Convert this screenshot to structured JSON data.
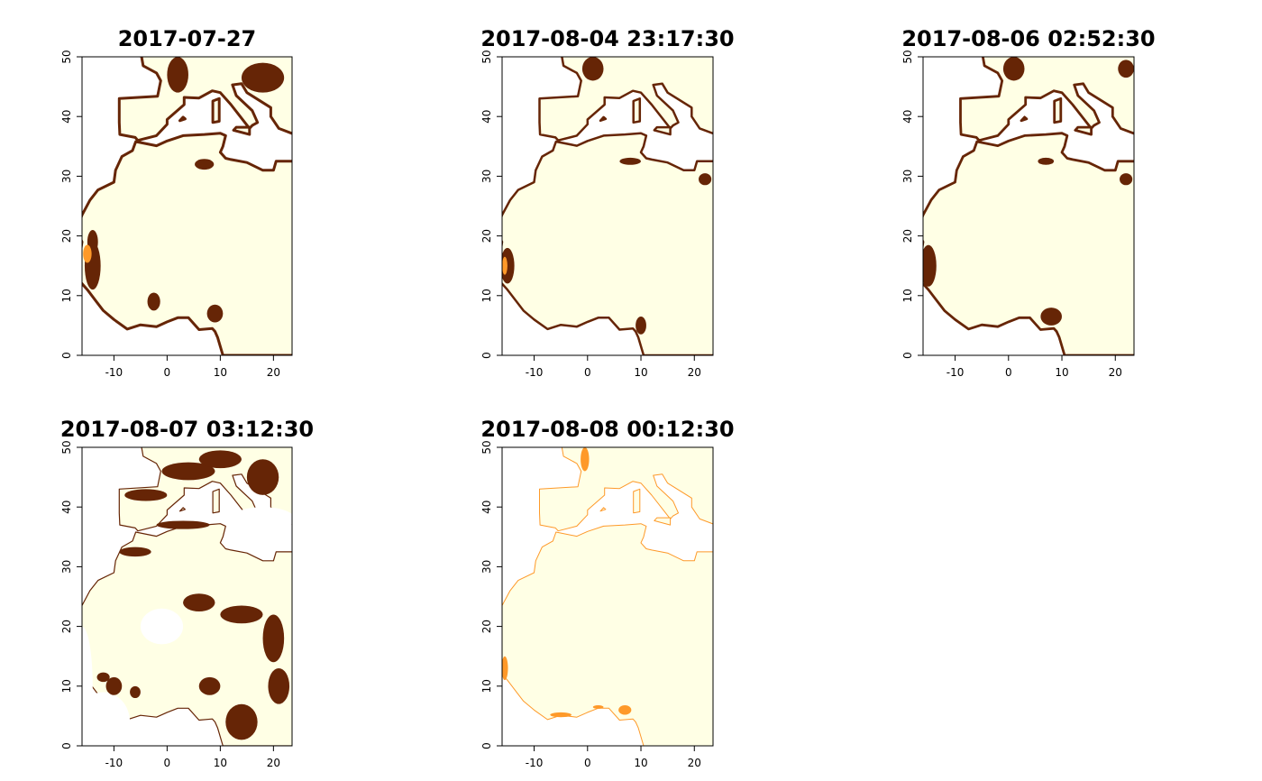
{
  "chart_data": [
    {
      "type": "heatmap",
      "title": "2017-07-27",
      "xlim": [
        -16,
        23.5
      ],
      "ylim": [
        0,
        50
      ],
      "xticks": [
        -10,
        0,
        10,
        20
      ],
      "yticks": [
        0,
        10,
        20,
        30,
        40,
        50
      ],
      "colors": {
        "low": "#FFFFE5",
        "mid": "#FE9929",
        "high": "#662506",
        "na": "#FFFFFF"
      }
    },
    {
      "type": "heatmap",
      "title": "2017-08-04 23:17:30",
      "xlim": [
        -16,
        23.5
      ],
      "ylim": [
        0,
        50
      ],
      "xticks": [
        -10,
        0,
        10,
        20
      ],
      "yticks": [
        0,
        10,
        20,
        30,
        40,
        50
      ],
      "colors": {
        "low": "#FFFFE5",
        "mid": "#FE9929",
        "high": "#662506",
        "na": "#FFFFFF"
      }
    },
    {
      "type": "heatmap",
      "title": "2017-08-06 02:52:30",
      "xlim": [
        -16,
        23.5
      ],
      "ylim": [
        0,
        50
      ],
      "xticks": [
        -10,
        0,
        10,
        20
      ],
      "yticks": [
        0,
        10,
        20,
        30,
        40,
        50
      ],
      "colors": {
        "low": "#FFFFE5",
        "mid": "#FE9929",
        "high": "#662506",
        "na": "#FFFFFF"
      }
    },
    {
      "type": "heatmap",
      "title": "2017-08-07 03:12:30",
      "xlim": [
        -16,
        23.5
      ],
      "ylim": [
        0,
        50
      ],
      "xticks": [
        -10,
        0,
        10,
        20
      ],
      "yticks": [
        0,
        10,
        20,
        30,
        40,
        50
      ],
      "colors": {
        "low": "#FFFFE5",
        "mid": "#FE9929",
        "high": "#662506",
        "na": "#FFFFFF"
      }
    },
    {
      "type": "heatmap",
      "title": "2017-08-08 00:12:30",
      "xlim": [
        -16,
        23.5
      ],
      "ylim": [
        0,
        50
      ],
      "xticks": [
        -10,
        0,
        10,
        20
      ],
      "yticks": [
        0,
        10,
        20,
        30,
        40,
        50
      ],
      "colors": {
        "low": "#FFFFE5",
        "mid": "#FE9929",
        "high": "#662506",
        "na": "#FFFFFF"
      }
    }
  ]
}
